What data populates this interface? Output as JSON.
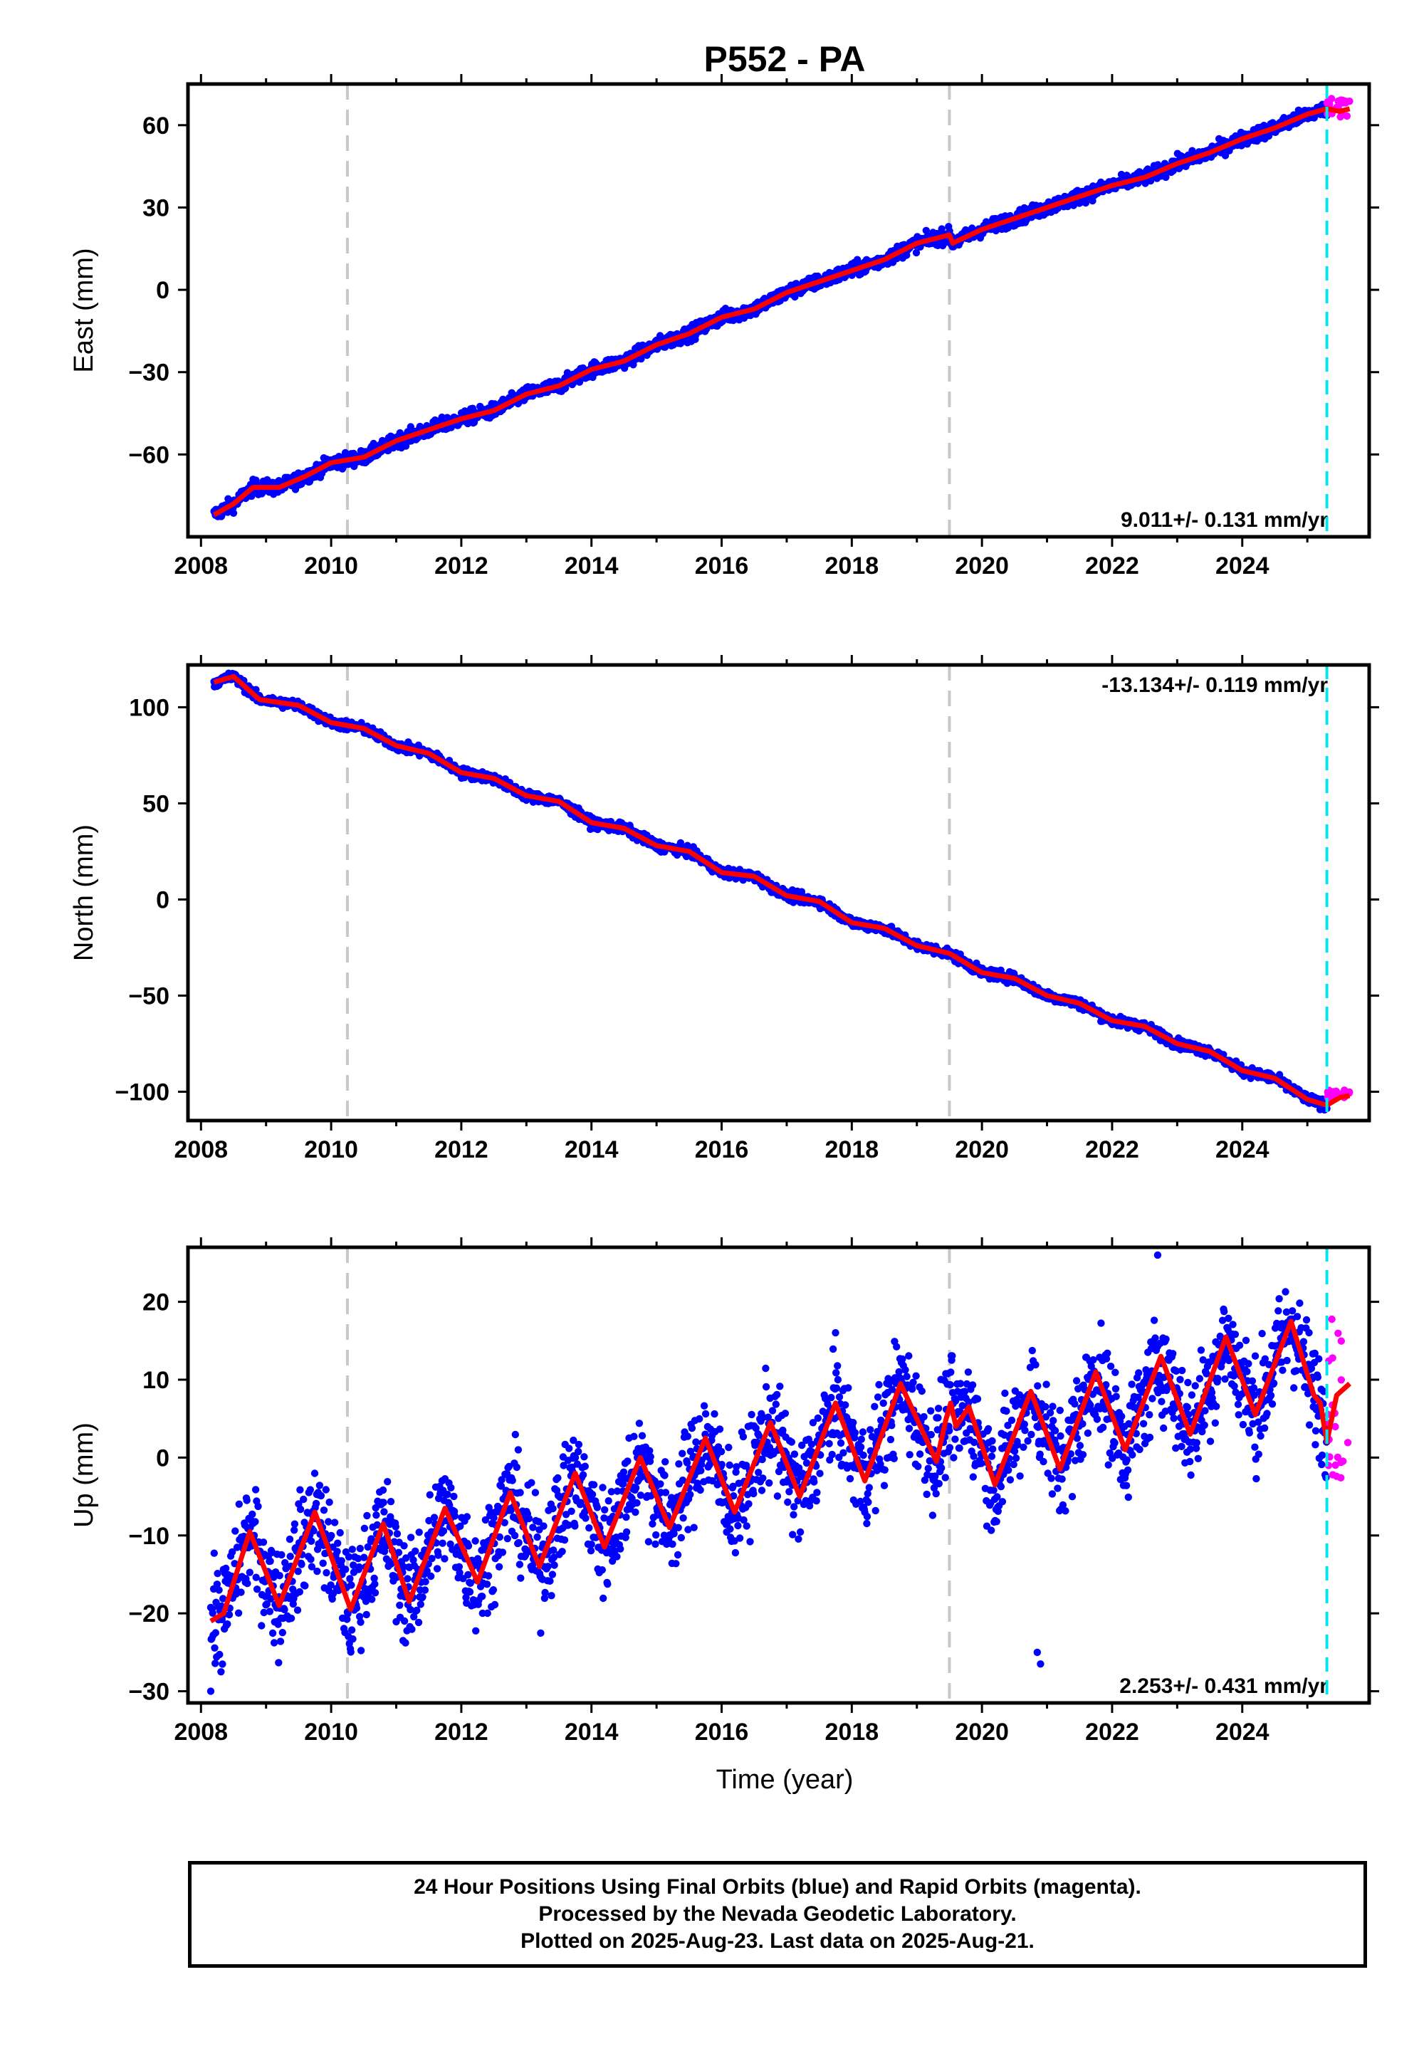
{
  "title": "P552 - PA",
  "colors": {
    "final_orbits": "#0000ff",
    "rapid_orbits": "#ff00ff",
    "model_fit": "#ff0000",
    "equipment_change": "#c8c8c8",
    "last_data": "#00e5ee"
  },
  "caption": {
    "line1": "24 Hour Positions Using Final Orbits (blue) and Rapid Orbits (magenta).",
    "line2": "Processed by the Nevada Geodetic Laboratory.",
    "line3": "Plotted on 2025-Aug-23. Last data on 2025-Aug-21."
  },
  "chart_data": [
    {
      "type": "scatter",
      "component": "east",
      "ylabel": "East (mm)",
      "xlabel": "",
      "xlim": [
        2007.8,
        2025.95
      ],
      "ylim": [
        -90,
        75
      ],
      "x_ticks": [
        2008,
        2010,
        2012,
        2014,
        2016,
        2018,
        2020,
        2022,
        2024
      ],
      "y_ticks": [
        60,
        30,
        0,
        -30,
        -60
      ],
      "y_tick_labels": [
        "60",
        "30",
        "0",
        "−30",
        "−60"
      ],
      "rate_label": "9.011+/- 0.131 mm/yr",
      "rate_position": "bottom-right",
      "grid": false,
      "equipment_changes": [
        2010.25,
        2019.5
      ],
      "last_data_marker": 2025.3,
      "fit_points": [
        [
          2008.2,
          -82
        ],
        [
          2008.5,
          -78
        ],
        [
          2008.8,
          -72
        ],
        [
          2009.2,
          -72
        ],
        [
          2009.6,
          -68
        ],
        [
          2010.0,
          -63
        ],
        [
          2010.5,
          -61
        ],
        [
          2011.0,
          -55
        ],
        [
          2011.5,
          -51
        ],
        [
          2012.0,
          -47
        ],
        [
          2012.5,
          -44
        ],
        [
          2013.0,
          -38
        ],
        [
          2013.5,
          -35
        ],
        [
          2014.0,
          -29
        ],
        [
          2014.5,
          -26
        ],
        [
          2015.0,
          -20
        ],
        [
          2015.5,
          -16
        ],
        [
          2016.0,
          -10
        ],
        [
          2016.5,
          -7
        ],
        [
          2017.0,
          -1
        ],
        [
          2017.5,
          3
        ],
        [
          2018.0,
          7
        ],
        [
          2018.5,
          11
        ],
        [
          2019.0,
          17
        ],
        [
          2019.5,
          20
        ],
        [
          2019.55,
          17
        ],
        [
          2020.0,
          22
        ],
        [
          2020.5,
          26
        ],
        [
          2021.0,
          30
        ],
        [
          2021.5,
          34
        ],
        [
          2022.0,
          38
        ],
        [
          2022.5,
          41
        ],
        [
          2023.0,
          46
        ],
        [
          2023.5,
          50
        ],
        [
          2024.0,
          55
        ],
        [
          2024.5,
          59
        ],
        [
          2025.0,
          64
        ],
        [
          2025.3,
          66
        ],
        [
          2025.5,
          65
        ],
        [
          2025.65,
          66
        ]
      ],
      "rapid_range": [
        2025.3,
        2025.65
      ],
      "rapid_values": [
        63,
        70,
        66
      ]
    },
    {
      "type": "scatter",
      "component": "north",
      "ylabel": "North (mm)",
      "xlabel": "",
      "xlim": [
        2007.8,
        2025.95
      ],
      "ylim": [
        -115,
        122
      ],
      "x_ticks": [
        2008,
        2010,
        2012,
        2014,
        2016,
        2018,
        2020,
        2022,
        2024
      ],
      "y_ticks": [
        100,
        50,
        0,
        -50,
        -100
      ],
      "y_tick_labels": [
        "100",
        "50",
        "0",
        "−50",
        "−100"
      ],
      "rate_label": "-13.134+/- 0.119 mm/yr",
      "rate_position": "top-right",
      "grid": false,
      "equipment_changes": [
        2010.25,
        2019.5
      ],
      "last_data_marker": 2025.3,
      "fit_points": [
        [
          2008.2,
          113
        ],
        [
          2008.5,
          116
        ],
        [
          2008.9,
          104
        ],
        [
          2009.5,
          101
        ],
        [
          2010.0,
          92
        ],
        [
          2010.5,
          89
        ],
        [
          2011.0,
          80
        ],
        [
          2011.5,
          76
        ],
        [
          2012.0,
          66
        ],
        [
          2012.5,
          63
        ],
        [
          2013.0,
          54
        ],
        [
          2013.5,
          51
        ],
        [
          2014.0,
          40
        ],
        [
          2014.5,
          37
        ],
        [
          2015.0,
          28
        ],
        [
          2015.5,
          25
        ],
        [
          2016.0,
          14
        ],
        [
          2016.5,
          12
        ],
        [
          2017.0,
          2
        ],
        [
          2017.5,
          -1
        ],
        [
          2018.0,
          -12
        ],
        [
          2018.5,
          -15
        ],
        [
          2019.0,
          -24
        ],
        [
          2019.5,
          -28
        ],
        [
          2020.0,
          -38
        ],
        [
          2020.5,
          -41
        ],
        [
          2021.0,
          -50
        ],
        [
          2021.5,
          -54
        ],
        [
          2022.0,
          -63
        ],
        [
          2022.5,
          -66
        ],
        [
          2023.0,
          -75
        ],
        [
          2023.5,
          -79
        ],
        [
          2024.0,
          -89
        ],
        [
          2024.5,
          -93
        ],
        [
          2025.0,
          -104
        ],
        [
          2025.3,
          -107
        ],
        [
          2025.5,
          -103
        ],
        [
          2025.65,
          -102
        ]
      ],
      "rapid_range": [
        2025.3,
        2025.65
      ],
      "rapid_values": [
        -103,
        -99,
        -101
      ]
    },
    {
      "type": "scatter",
      "component": "up",
      "ylabel": "Up (mm)",
      "xlabel": "Time (year)",
      "xlim": [
        2007.8,
        2025.95
      ],
      "ylim": [
        -31.5,
        27
      ],
      "x_ticks": [
        2008,
        2010,
        2012,
        2014,
        2016,
        2018,
        2020,
        2022,
        2024
      ],
      "y_ticks": [
        20,
        10,
        0,
        -10,
        -20,
        -30
      ],
      "y_tick_labels": [
        "20",
        "10",
        "0",
        "−10",
        "−20",
        "−30"
      ],
      "rate_label": "2.253+/- 0.431 mm/yr",
      "rate_position": "bottom-right",
      "grid": false,
      "equipment_changes": [
        2010.25,
        2019.5
      ],
      "last_data_marker": 2025.3,
      "fit_points": [
        [
          2008.15,
          -21
        ],
        [
          2008.35,
          -20
        ],
        [
          2008.75,
          -9.5
        ],
        [
          2009.2,
          -19
        ],
        [
          2009.75,
          -7
        ],
        [
          2010.3,
          -19.5
        ],
        [
          2010.8,
          -8.5
        ],
        [
          2011.2,
          -18.5
        ],
        [
          2011.75,
          -6.5
        ],
        [
          2012.25,
          -16
        ],
        [
          2012.75,
          -4.5
        ],
        [
          2013.2,
          -14
        ],
        [
          2013.75,
          -2
        ],
        [
          2014.2,
          -11.5
        ],
        [
          2014.75,
          0
        ],
        [
          2015.2,
          -9
        ],
        [
          2015.75,
          2.5
        ],
        [
          2016.2,
          -7
        ],
        [
          2016.75,
          4.5
        ],
        [
          2017.2,
          -5
        ],
        [
          2017.75,
          7
        ],
        [
          2018.2,
          -3
        ],
        [
          2018.75,
          9.5
        ],
        [
          2019.3,
          -0.5
        ],
        [
          2019.45,
          5
        ],
        [
          2019.52,
          7
        ],
        [
          2019.6,
          4
        ],
        [
          2019.8,
          6.5
        ],
        [
          2020.2,
          -3.5
        ],
        [
          2020.75,
          8.5
        ],
        [
          2021.2,
          -1.5
        ],
        [
          2021.75,
          11
        ],
        [
          2022.2,
          1
        ],
        [
          2022.75,
          13
        ],
        [
          2023.2,
          3
        ],
        [
          2023.75,
          15.5
        ],
        [
          2024.2,
          5.5
        ],
        [
          2024.75,
          17.5
        ],
        [
          2025.1,
          8
        ],
        [
          2025.2,
          7
        ],
        [
          2025.3,
          2
        ],
        [
          2025.45,
          8
        ],
        [
          2025.65,
          9.5
        ]
      ],
      "outliers": [
        [
          2008.15,
          -30
        ],
        [
          2020.85,
          -25
        ],
        [
          2020.9,
          -26.5
        ],
        [
          2022.7,
          26
        ]
      ],
      "rapid_range": [
        2025.3,
        2025.65
      ],
      "rapid_values": [
        -3,
        18,
        5
      ]
    }
  ]
}
